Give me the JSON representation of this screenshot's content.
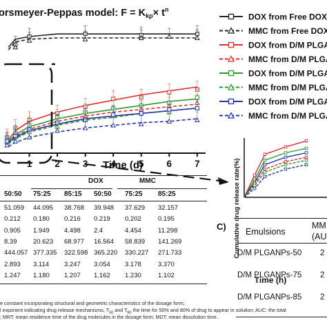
{
  "main_chart": {
    "title": "orsmeyer-Peppas model: F = K",
    "title_sub": "kp",
    "title_tail": "× t",
    "title_sup": "n",
    "xlabel": "Time (d)",
    "x_ticks": [
      "1",
      "2",
      "3",
      "4",
      "5",
      "6",
      "7"
    ]
  },
  "chart_data": [
    {
      "type": "line",
      "title": "orsmeyer-Peppas model: F = Kkp × tn",
      "xlabel": "Time (d)",
      "ylabel": "",
      "xlim": [
        -0.05,
        7.3
      ],
      "ylim": [
        0,
        100
      ],
      "x": [
        0.25,
        0.5,
        1,
        2,
        3,
        4,
        5,
        6,
        7
      ],
      "series": [
        {
          "name": "DOX from Free DOX-MM",
          "color": "#222222",
          "dash": "solid",
          "marker": "square-open",
          "values": [
            80,
            86,
            88,
            90,
            90,
            90,
            90,
            90,
            90
          ],
          "points": [
            [
              0.5,
              82
            ],
            [
              1,
              88
            ],
            [
              3,
              90
            ],
            [
              5,
              89
            ],
            [
              7,
              90
            ]
          ]
        },
        {
          "name": "MMC from Free DOX-MM",
          "color": "#222222",
          "dash": "dashed",
          "marker": "triangle-open",
          "values": [
            78,
            84,
            86,
            87,
            87,
            87,
            87,
            87,
            87
          ],
          "points": [
            [
              0.5,
              80
            ],
            [
              1,
              85
            ],
            [
              3,
              86
            ],
            [
              5,
              87
            ],
            [
              6,
              88
            ],
            [
              7,
              87
            ]
          ]
        },
        {
          "name": "DOX from D/M PLGANP",
          "color": "#e02b2b",
          "dash": "solid",
          "marker": "square-open",
          "values": [
            10,
            17,
            24,
            31,
            36,
            40,
            44,
            47,
            50
          ],
          "points": [
            [
              0.2,
              12
            ],
            [
              0.5,
              19
            ],
            [
              1,
              25
            ],
            [
              2,
              30
            ],
            [
              3,
              35
            ],
            [
              4,
              41
            ],
            [
              5,
              42
            ],
            [
              6,
              46
            ],
            [
              7,
              48
            ]
          ]
        },
        {
          "name": "MMC from D/M PLGANP",
          "color": "#e02b2b",
          "dash": "dashed",
          "marker": "triangle-open",
          "values": [
            8,
            13,
            18,
            24,
            28,
            31,
            33,
            35,
            37
          ],
          "points": [
            [
              0.2,
              9
            ],
            [
              0.5,
              14
            ],
            [
              1,
              18
            ],
            [
              2,
              23
            ],
            [
              3,
              28
            ],
            [
              4,
              30
            ],
            [
              5,
              33
            ],
            [
              6,
              36
            ],
            [
              7,
              38
            ]
          ]
        },
        {
          "name": "DOX from D/M PLGANP",
          "color": "#2a9a2a",
          "dash": "solid",
          "marker": "square-open",
          "values": [
            9,
            14,
            20,
            26,
            30,
            33,
            36,
            39,
            41
          ],
          "points": [
            [
              0.2,
              10
            ],
            [
              0.5,
              15
            ],
            [
              1,
              21
            ],
            [
              2,
              27
            ],
            [
              3,
              31
            ],
            [
              4,
              34
            ],
            [
              5,
              36
            ],
            [
              6,
              38
            ],
            [
              7,
              42
            ]
          ]
        },
        {
          "name": "MMC from D/M PLGANP",
          "color": "#2a9a2a",
          "dash": "dashed",
          "marker": "triangle-open",
          "values": [
            7,
            11,
            16,
            21,
            25,
            27,
            30,
            32,
            34
          ],
          "points": [
            [
              0.2,
              8
            ],
            [
              0.5,
              12
            ],
            [
              1,
              16
            ],
            [
              2,
              20
            ],
            [
              3,
              25
            ],
            [
              4,
              28
            ],
            [
              5,
              30
            ],
            [
              6,
              31
            ],
            [
              7,
              34
            ]
          ]
        },
        {
          "name": "DOX from D/M PLGANP",
          "color": "#2233aa",
          "dash": "solid",
          "marker": "square-open",
          "values": [
            8,
            12,
            17,
            22,
            26,
            28,
            30,
            32,
            34
          ],
          "points": [
            [
              0.2,
              9
            ],
            [
              0.5,
              13
            ],
            [
              1,
              18
            ],
            [
              2,
              23
            ],
            [
              3,
              25
            ],
            [
              4,
              29
            ],
            [
              5,
              30
            ],
            [
              6,
              33
            ],
            [
              7,
              34
            ]
          ]
        },
        {
          "name": "MMC from D/M PLGANP",
          "color": "#2233aa",
          "dash": "dashed",
          "marker": "triangle-open",
          "values": [
            5,
            8,
            12,
            16,
            19,
            21,
            23,
            24,
            26
          ],
          "points": [
            [
              0.2,
              6
            ],
            [
              0.5,
              9
            ],
            [
              1,
              12
            ],
            [
              2,
              17
            ],
            [
              3,
              19
            ],
            [
              4,
              21
            ],
            [
              5,
              22
            ],
            [
              6,
              24
            ],
            [
              7,
              25
            ]
          ]
        }
      ],
      "legend": "top-right"
    },
    {
      "type": "line",
      "title": "",
      "xlabel": "Time (h)",
      "ylabel": "Cumulative drug release rate(%)",
      "xlim": [
        0,
        4
      ],
      "ylim": [
        0,
        40
      ],
      "x": [
        0,
        0.5,
        1,
        2,
        3
      ],
      "series": [
        {
          "color": "#e02b2b",
          "dash": "solid",
          "values": [
            0,
            15,
            29,
            34,
            38
          ]
        },
        {
          "color": "#2a9a2a",
          "dash": "solid",
          "values": [
            0,
            12,
            25,
            30,
            33
          ]
        },
        {
          "color": "#2233aa",
          "dash": "solid",
          "values": [
            0,
            10,
            22,
            27,
            30
          ]
        },
        {
          "color": "#e02b2b",
          "dash": "dashed",
          "values": [
            0,
            9,
            19,
            24,
            27
          ]
        },
        {
          "color": "#2a9a2a",
          "dash": "dashed",
          "values": [
            0,
            8,
            17,
            22,
            25
          ]
        },
        {
          "color": "#2233aa",
          "dash": "dashed",
          "values": [
            0,
            6,
            14,
            19,
            22
          ]
        }
      ]
    }
  ],
  "inset": {
    "ylabel": "Cumulative drug release rate(%)",
    "xlabel": "Time (h)"
  },
  "table_b": {
    "group_headers": [
      "DOX",
      "MMC"
    ],
    "col_headers": [
      "50:50",
      "75:25",
      "85:15",
      "50:50",
      "75:25",
      "85:25"
    ],
    "rows": [
      [
        "51.059",
        "44.095",
        "38.768",
        "39.948",
        "37.629",
        "32.157"
      ],
      [
        "0.212",
        "0.180",
        "0.216",
        "0.219",
        "0.202",
        "0.195"
      ],
      [
        "0.905",
        "1.949",
        "4.498",
        "2.4",
        "4.454",
        "11.298"
      ],
      [
        "8.39",
        "20.623",
        "68.977",
        "16.564",
        "58.839",
        "141.269"
      ],
      [
        "444.057",
        "377.335",
        "322.598",
        "365.220",
        "330.227",
        "271.733"
      ],
      [
        "2.893",
        "3.114",
        "3.247",
        "3.054",
        "3.178",
        "3.370"
      ],
      [
        "1.247",
        "1.180",
        "1.207",
        "1.162",
        "1.230",
        "1.102"
      ]
    ]
  },
  "table_c": {
    "panel_label": "C)",
    "col_header": "Emulsions",
    "col_header_2": "MM",
    "col_header_2b": "(AU",
    "rows": [
      {
        "label": "D/M PLGANPs-50",
        "value": "2"
      },
      {
        "label": "D/M PLGANPs-75",
        "value": "2"
      },
      {
        "label": "D/M PLGANPs-85",
        "value": "2"
      }
    ]
  },
  "footnotes": [
    "e constant incorporating structural and geometric characteristics of the dosage form;",
    "l exponent indicating drug release mechanisms, T",
    "50",
    " and T",
    "80",
    " the time for 50% and 80% of drug to appear in solution; AUC: the total",
    "; MRT: mean residence time of the drug molecules in the dosage form; MDT: mean dissolution time."
  ]
}
